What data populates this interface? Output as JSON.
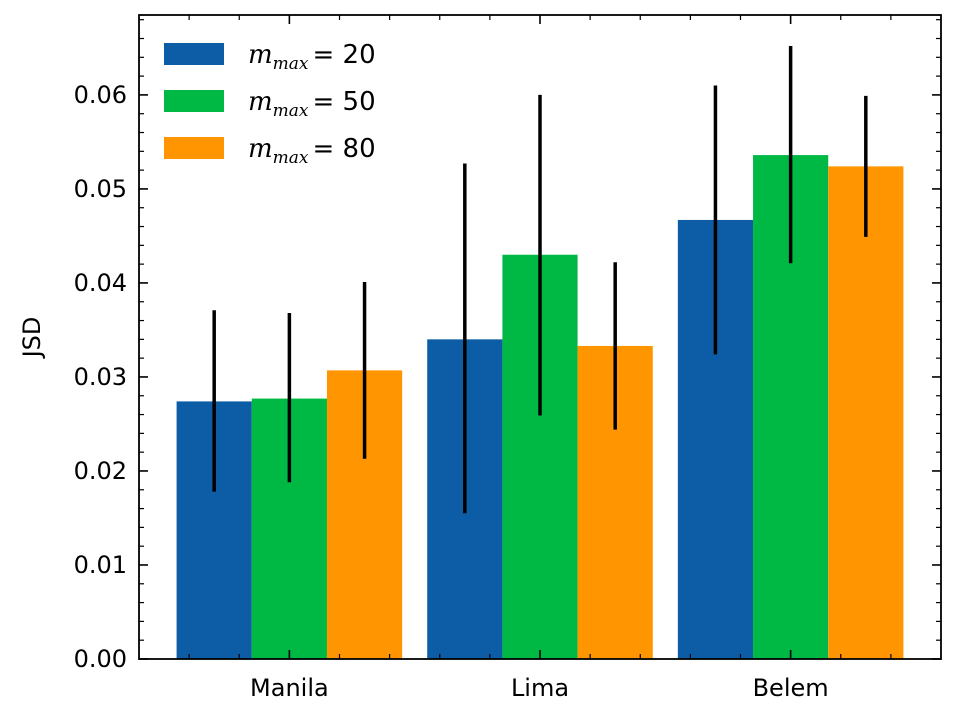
{
  "chart_data": {
    "type": "bar",
    "ylabel": "JSD",
    "xlabel": "",
    "categories": [
      "Manila",
      "Lima",
      "Belem"
    ],
    "ylim": [
      0,
      0.0685
    ],
    "yticks": [
      "0.00",
      "0.01",
      "0.02",
      "0.03",
      "0.04",
      "0.05",
      "0.06"
    ],
    "ytick_values": [
      0,
      0.01,
      0.02,
      0.03,
      0.04,
      0.05,
      0.06
    ],
    "legend_position": "top-left",
    "series": [
      {
        "name": "m_max = 20",
        "legend_main": "m",
        "legend_sub": "max",
        "legend_value": "20",
        "color": "#0c5da5",
        "values": [
          0.0274,
          0.034,
          0.0467
        ],
        "err_low": [
          0.0178,
          0.0155,
          0.0324
        ],
        "err_high": [
          0.0371,
          0.0527,
          0.061
        ]
      },
      {
        "name": "m_max = 50",
        "legend_main": "m",
        "legend_sub": "max",
        "legend_value": "50",
        "color": "#00b945",
        "values": [
          0.0277,
          0.043,
          0.0536
        ],
        "err_low": [
          0.0188,
          0.0259,
          0.0421
        ],
        "err_high": [
          0.0368,
          0.06,
          0.0652
        ]
      },
      {
        "name": "m_max = 80",
        "legend_main": "m",
        "legend_sub": "max",
        "legend_value": "80",
        "color": "#ff9500",
        "values": [
          0.0307,
          0.0333,
          0.0524
        ],
        "err_low": [
          0.0213,
          0.0244,
          0.0449
        ],
        "err_high": [
          0.0401,
          0.0422,
          0.0599
        ]
      }
    ]
  }
}
